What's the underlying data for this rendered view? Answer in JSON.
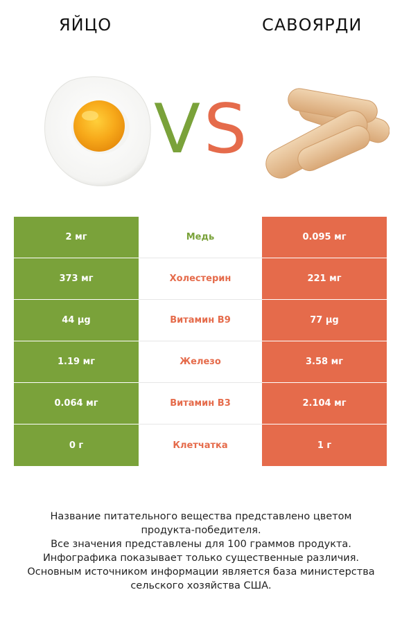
{
  "header": {
    "left_title": "ЯЙЦО",
    "right_title": "САВОЯРДИ",
    "vs_left": "V",
    "vs_right": "S"
  },
  "colors": {
    "green": "#7aa23a",
    "red": "#e56b4b"
  },
  "images": {
    "left": "fried-egg-image",
    "right": "savoiardi-biscuits-image"
  },
  "rows": [
    {
      "left": "2 мг",
      "nutrient": "Медь",
      "right": "0.095 мг",
      "winner": "green"
    },
    {
      "left": "373 мг",
      "nutrient": "Холестерин",
      "right": "221 мг",
      "winner": "red"
    },
    {
      "left": "44 µg",
      "nutrient": "Витамин B9",
      "right": "77 µg",
      "winner": "red"
    },
    {
      "left": "1.19 мг",
      "nutrient": "Железо",
      "right": "3.58 мг",
      "winner": "red"
    },
    {
      "left": "0.064 мг",
      "nutrient": "Витамин B3",
      "right": "2.104 мг",
      "winner": "red"
    },
    {
      "left": "0 г",
      "nutrient": "Клетчатка",
      "right": "1 г",
      "winner": "red"
    }
  ],
  "footnote": {
    "line1": "Название питательного вещества представлено цветом",
    "line2": "продукта-победителя.",
    "line3": "Все значения представлены для 100 граммов продукта.",
    "line4": "Инфографика показывает только существенные различия.",
    "line5": "Основным источником информации является база министерства",
    "line6": "сельского хозяйства США."
  }
}
